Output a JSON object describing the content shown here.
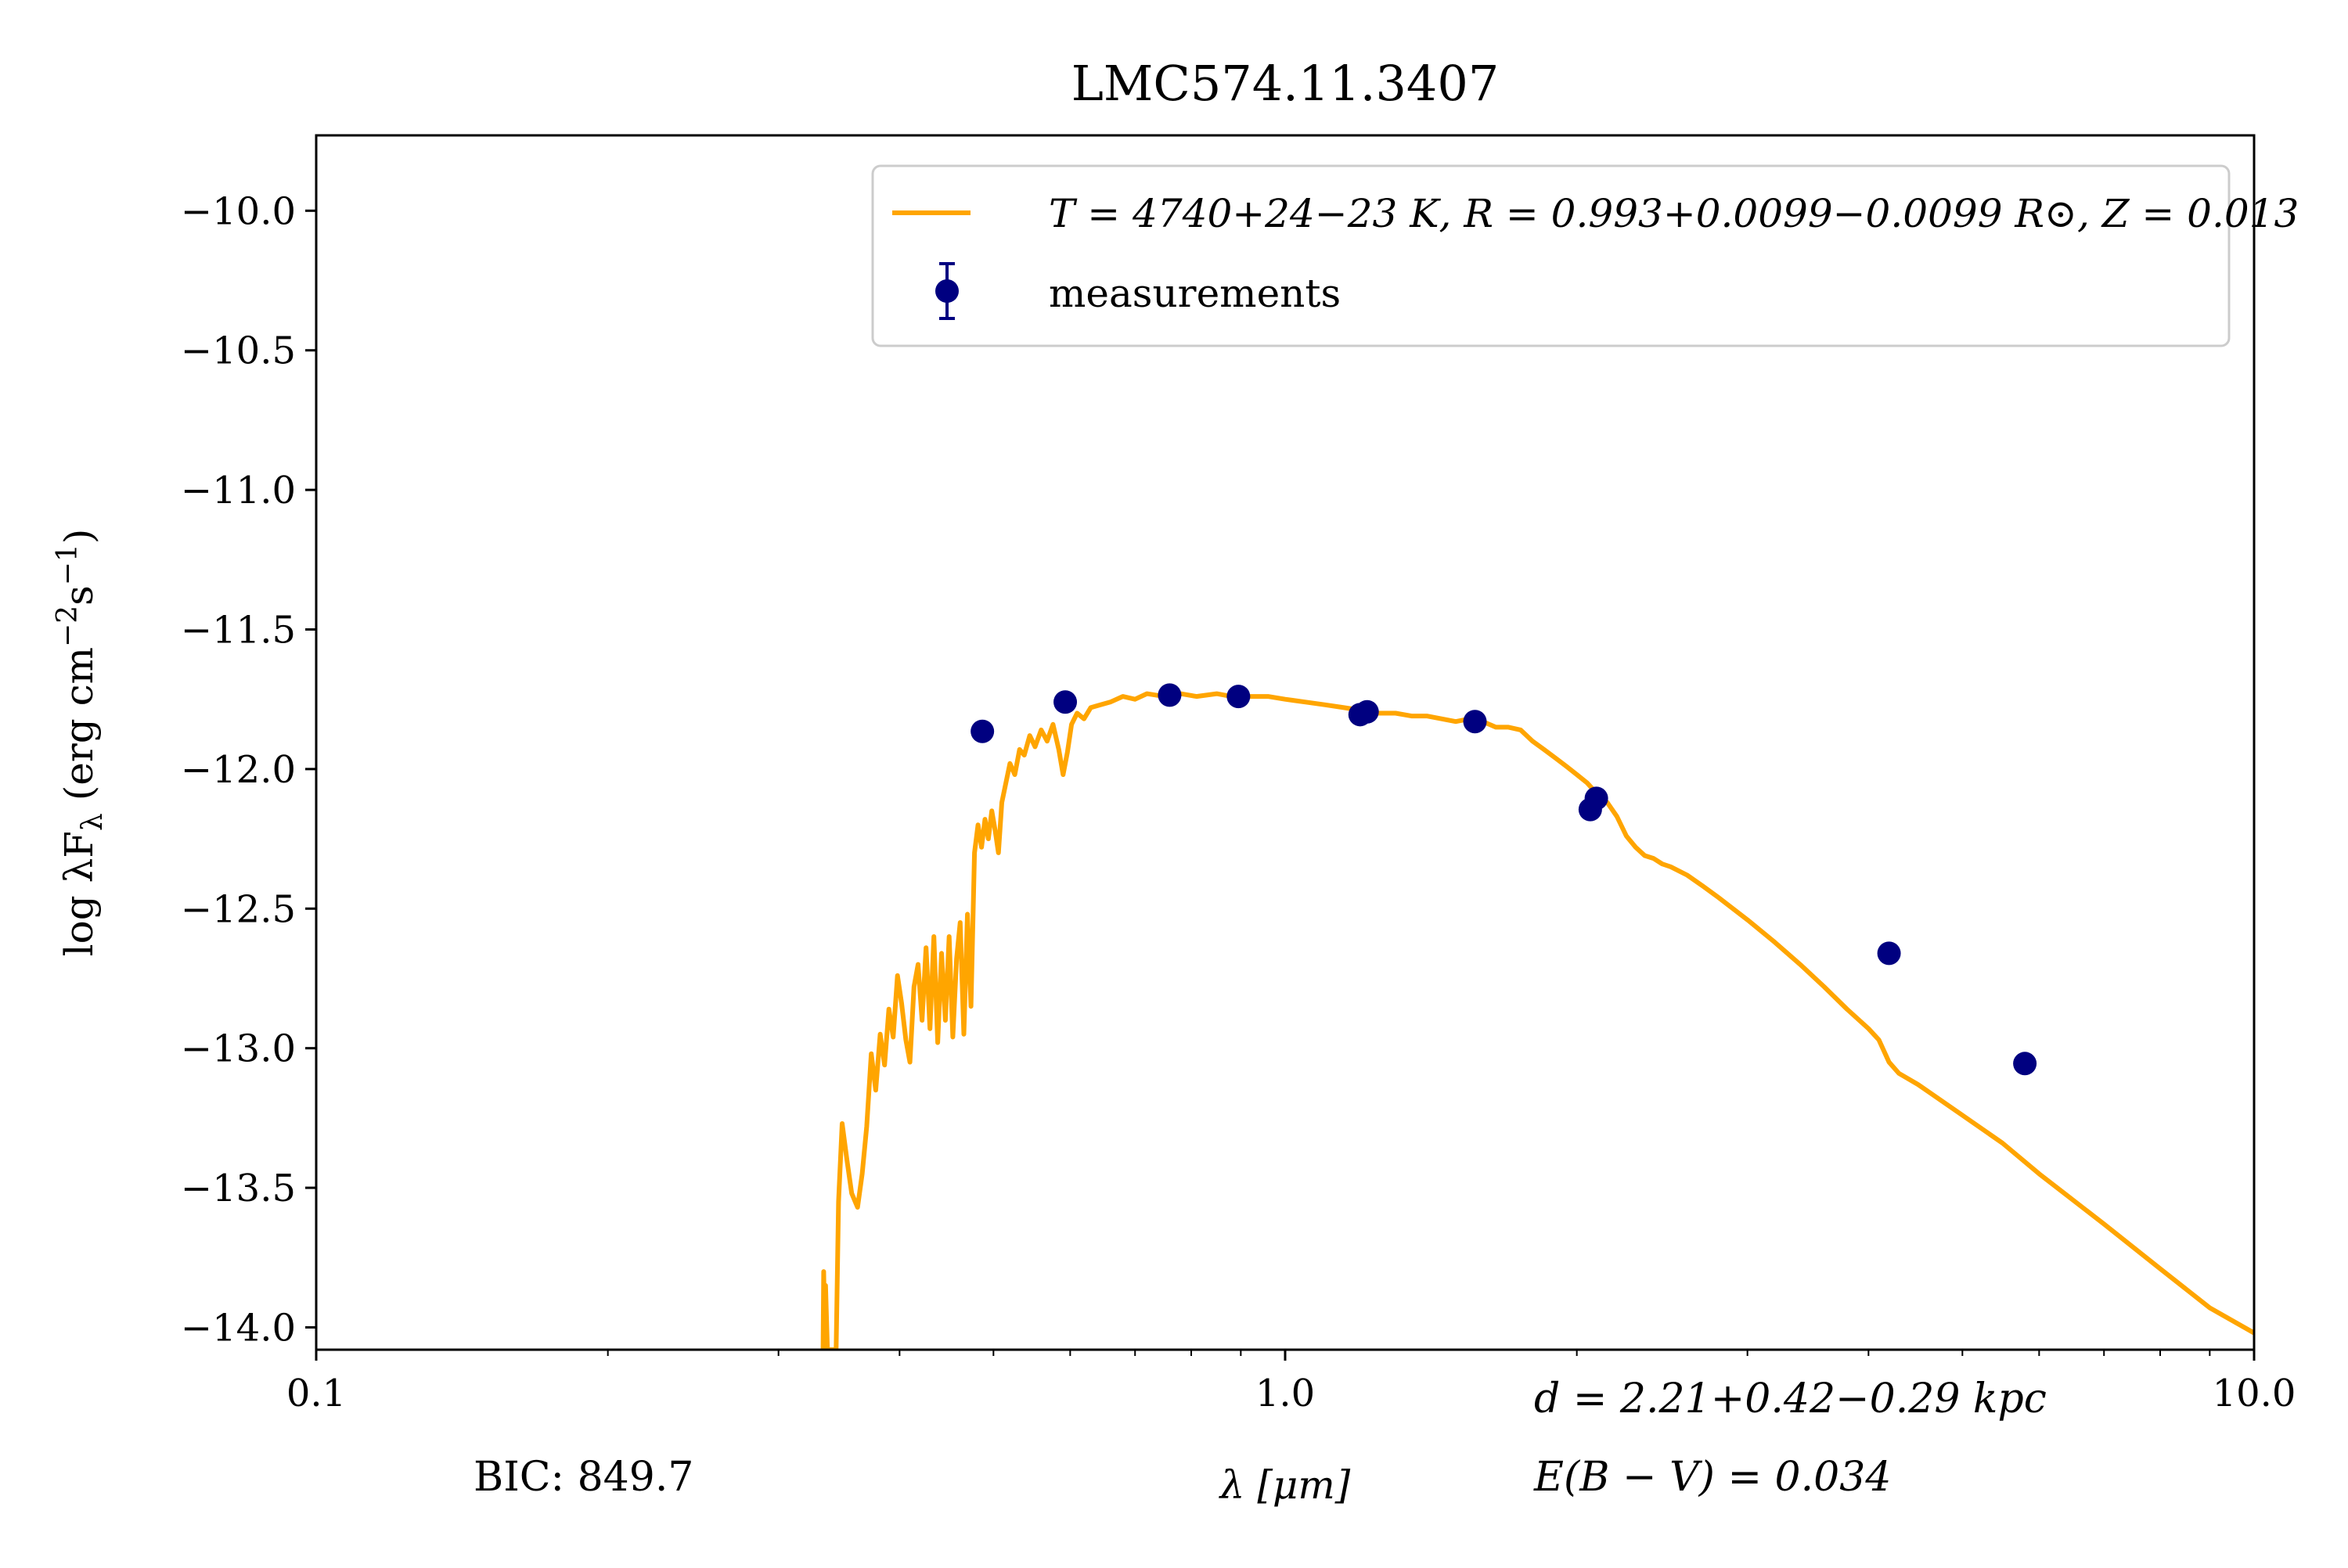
{
  "chart_data": {
    "type": "line",
    "title": "LMC574.11.3407",
    "xlabel": "λ [μm]",
    "ylabel": "log λF",
    "ylabel_sub": "λ",
    "ylabel_units": "(erg cm",
    "ylabel_units_exp1": "−2",
    "ylabel_units_mid": "s",
    "ylabel_units_exp2": "−1",
    "ylabel_units_end": ")",
    "xscale": "log",
    "xlim": [
      0.1,
      10.0
    ],
    "ylim": [
      -14.08,
      -9.73
    ],
    "xticks": [
      {
        "value": 0.1,
        "label": "0.1"
      },
      {
        "value": 1.0,
        "label": "1.0"
      },
      {
        "value": 10.0,
        "label": "10.0"
      }
    ],
    "yticks": [
      {
        "value": -10.0,
        "label": "−10.0"
      },
      {
        "value": -10.5,
        "label": "−10.5"
      },
      {
        "value": -11.0,
        "label": "−11.0"
      },
      {
        "value": -11.5,
        "label": "−11.5"
      },
      {
        "value": -12.0,
        "label": "−12.0"
      },
      {
        "value": -12.5,
        "label": "−12.5"
      },
      {
        "value": -13.0,
        "label": "−13.0"
      },
      {
        "value": -13.5,
        "label": "−13.5"
      },
      {
        "value": -14.0,
        "label": "−14.0"
      }
    ],
    "legend_position": "top-right",
    "series": [
      {
        "name": "T = 4740+24−23 K, R = 0.993+0.0099−0.0099 R⊙, Z = 0.013",
        "color": "#ffa500",
        "kind": "model",
        "points": [
          [
            0.3335,
            -14.08
          ],
          [
            0.334,
            -13.8
          ],
          [
            0.3348,
            -14.0
          ],
          [
            0.3355,
            -13.85
          ],
          [
            0.337,
            -14.08
          ],
          [
            0.344,
            -14.08
          ],
          [
            0.346,
            -13.55
          ],
          [
            0.349,
            -13.27
          ],
          [
            0.353,
            -13.4
          ],
          [
            0.357,
            -13.52
          ],
          [
            0.362,
            -13.57
          ],
          [
            0.366,
            -13.45
          ],
          [
            0.37,
            -13.28
          ],
          [
            0.374,
            -13.02
          ],
          [
            0.378,
            -13.15
          ],
          [
            0.382,
            -12.95
          ],
          [
            0.386,
            -13.06
          ],
          [
            0.39,
            -12.86
          ],
          [
            0.394,
            -12.96
          ],
          [
            0.398,
            -12.74
          ],
          [
            0.402,
            -12.84
          ],
          [
            0.406,
            -12.97
          ],
          [
            0.41,
            -13.05
          ],
          [
            0.414,
            -12.78
          ],
          [
            0.418,
            -12.7
          ],
          [
            0.422,
            -12.9
          ],
          [
            0.426,
            -12.64
          ],
          [
            0.43,
            -12.93
          ],
          [
            0.434,
            -12.6
          ],
          [
            0.438,
            -12.98
          ],
          [
            0.442,
            -12.66
          ],
          [
            0.446,
            -12.9
          ],
          [
            0.45,
            -12.6
          ],
          [
            0.454,
            -12.96
          ],
          [
            0.458,
            -12.68
          ],
          [
            0.462,
            -12.55
          ],
          [
            0.466,
            -12.95
          ],
          [
            0.47,
            -12.52
          ],
          [
            0.474,
            -12.85
          ],
          [
            0.478,
            -12.3
          ],
          [
            0.482,
            -12.2
          ],
          [
            0.486,
            -12.28
          ],
          [
            0.49,
            -12.18
          ],
          [
            0.494,
            -12.25
          ],
          [
            0.498,
            -12.15
          ],
          [
            0.502,
            -12.22
          ],
          [
            0.506,
            -12.3
          ],
          [
            0.51,
            -12.12
          ],
          [
            0.515,
            -12.05
          ],
          [
            0.52,
            -11.98
          ],
          [
            0.526,
            -12.02
          ],
          [
            0.532,
            -11.93
          ],
          [
            0.538,
            -11.95
          ],
          [
            0.545,
            -11.88
          ],
          [
            0.552,
            -11.92
          ],
          [
            0.56,
            -11.86
          ],
          [
            0.568,
            -11.9
          ],
          [
            0.576,
            -11.84
          ],
          [
            0.584,
            -11.93
          ],
          [
            0.59,
            -12.02
          ],
          [
            0.596,
            -11.94
          ],
          [
            0.602,
            -11.84
          ],
          [
            0.61,
            -11.8
          ],
          [
            0.62,
            -11.82
          ],
          [
            0.63,
            -11.78
          ],
          [
            0.645,
            -11.77
          ],
          [
            0.66,
            -11.76
          ],
          [
            0.68,
            -11.74
          ],
          [
            0.7,
            -11.75
          ],
          [
            0.72,
            -11.73
          ],
          [
            0.75,
            -11.74
          ],
          [
            0.78,
            -11.73
          ],
          [
            0.81,
            -11.74
          ],
          [
            0.85,
            -11.73
          ],
          [
            0.88,
            -11.74
          ],
          [
            0.92,
            -11.74
          ],
          [
            0.96,
            -11.74
          ],
          [
            1.0,
            -11.75
          ],
          [
            1.05,
            -11.76
          ],
          [
            1.1,
            -11.77
          ],
          [
            1.15,
            -11.78
          ],
          [
            1.2,
            -11.79
          ],
          [
            1.25,
            -11.8
          ],
          [
            1.3,
            -11.8
          ],
          [
            1.35,
            -11.81
          ],
          [
            1.4,
            -11.81
          ],
          [
            1.45,
            -11.82
          ],
          [
            1.5,
            -11.83
          ],
          [
            1.55,
            -11.82
          ],
          [
            1.6,
            -11.83
          ],
          [
            1.65,
            -11.85
          ],
          [
            1.7,
            -11.85
          ],
          [
            1.75,
            -11.86
          ],
          [
            1.8,
            -11.9
          ],
          [
            1.85,
            -11.93
          ],
          [
            1.9,
            -11.96
          ],
          [
            1.95,
            -11.99
          ],
          [
            2.0,
            -12.02
          ],
          [
            2.05,
            -12.05
          ],
          [
            2.1,
            -12.09
          ],
          [
            2.15,
            -12.12
          ],
          [
            2.2,
            -12.17
          ],
          [
            2.25,
            -12.24
          ],
          [
            2.3,
            -12.28
          ],
          [
            2.35,
            -12.31
          ],
          [
            2.4,
            -12.32
          ],
          [
            2.45,
            -12.34
          ],
          [
            2.5,
            -12.35
          ],
          [
            2.6,
            -12.38
          ],
          [
            2.7,
            -12.42
          ],
          [
            2.8,
            -12.46
          ],
          [
            3.0,
            -12.54
          ],
          [
            3.2,
            -12.62
          ],
          [
            3.4,
            -12.7
          ],
          [
            3.6,
            -12.78
          ],
          [
            3.8,
            -12.86
          ],
          [
            4.0,
            -12.93
          ],
          [
            4.1,
            -12.97
          ],
          [
            4.2,
            -13.05
          ],
          [
            4.3,
            -13.09
          ],
          [
            4.5,
            -13.13
          ],
          [
            5.0,
            -13.24
          ],
          [
            5.5,
            -13.34
          ],
          [
            6.0,
            -13.45
          ],
          [
            7.0,
            -13.63
          ],
          [
            8.0,
            -13.79
          ],
          [
            9.0,
            -13.93
          ],
          [
            10.0,
            -14.02
          ]
        ]
      },
      {
        "name": "measurements",
        "color": "#000080",
        "kind": "points",
        "points": [
          [
            0.487,
            -11.865
          ],
          [
            0.593,
            -11.76
          ],
          [
            0.76,
            -11.735
          ],
          [
            0.895,
            -11.74
          ],
          [
            1.195,
            -11.805
          ],
          [
            1.215,
            -11.795
          ],
          [
            1.57,
            -11.83
          ],
          [
            2.065,
            -12.145
          ],
          [
            2.095,
            -12.105
          ],
          [
            4.2,
            -12.66
          ],
          [
            5.8,
            -13.055
          ]
        ]
      }
    ],
    "annotations": {
      "bic": "BIC: 849.7",
      "distance": "d = 2.21+0.42−0.29 kpc",
      "ebv": "E(B − V) = 0.034"
    }
  }
}
